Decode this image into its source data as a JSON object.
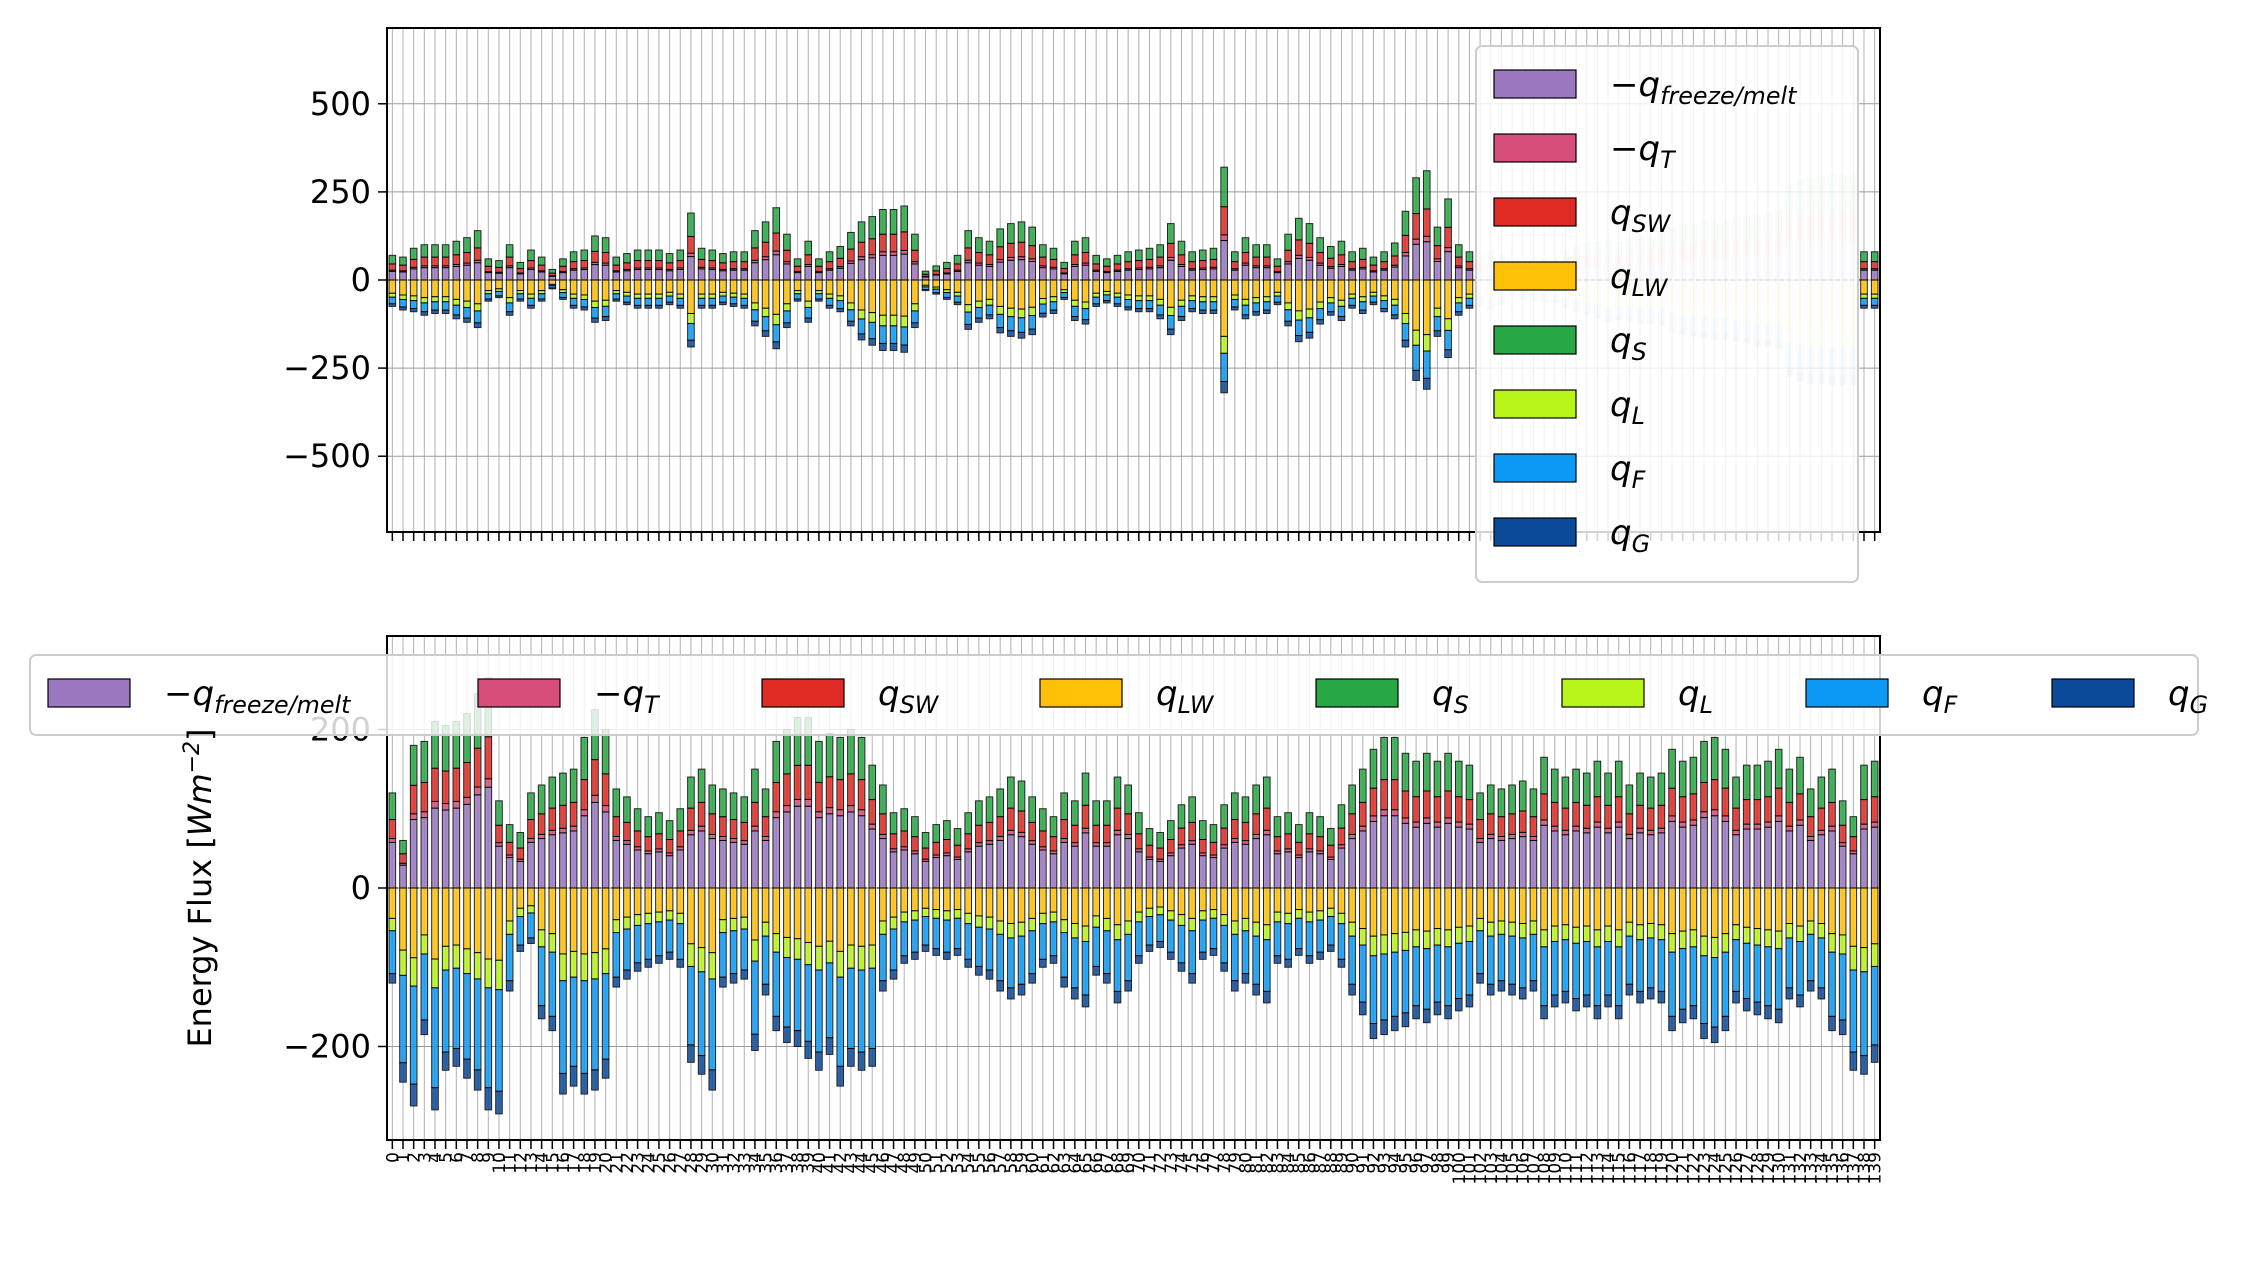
{
  "figure": {
    "ylabel_prefix": "Energy Flux [",
    "ylabel_unit": "Wm",
    "ylabel_sup": "−2",
    "ylabel_suffix": "]"
  },
  "legend_items": [
    {
      "key": "freeze_melt",
      "sign": "−q",
      "sub": "freeze/melt",
      "color": "#9a77bf"
    },
    {
      "key": "qT",
      "sign": "−q",
      "sub": "T",
      "color": "#d64e79"
    },
    {
      "key": "qSW",
      "sign": "q",
      "sub": "SW",
      "color": "#e02a24"
    },
    {
      "key": "qLW",
      "sign": "q",
      "sub": "LW",
      "color": "#ffc107"
    },
    {
      "key": "qS",
      "sign": "q",
      "sub": "S",
      "color": "#28a745"
    },
    {
      "key": "qL",
      "sign": "q",
      "sub": "L",
      "color": "#b8f51a"
    },
    {
      "key": "qF",
      "sign": "q",
      "sub": "F",
      "color": "#0b99f5"
    },
    {
      "key": "qG",
      "sign": "q",
      "sub": "G",
      "color": "#0b4a99"
    }
  ],
  "chart_data": [
    {
      "type": "bar",
      "stacked": true,
      "n_categories": 140,
      "y_ticks": [
        500,
        250,
        0,
        -250,
        -500
      ],
      "y_tick_labels": [
        "500",
        "250",
        "0",
        "−250",
        "−500"
      ],
      "ylim": [
        -715,
        715
      ],
      "grid": true,
      "legend_placement": "upper right, overlapping the bars",
      "positive_totals": [
        70,
        65,
        90,
        100,
        100,
        100,
        110,
        120,
        140,
        60,
        55,
        100,
        50,
        85,
        65,
        30,
        60,
        80,
        85,
        125,
        120,
        65,
        75,
        85,
        85,
        85,
        75,
        85,
        190,
        90,
        85,
        75,
        80,
        80,
        140,
        165,
        205,
        130,
        60,
        110,
        60,
        80,
        95,
        135,
        165,
        180,
        200,
        200,
        210,
        130,
        25,
        40,
        50,
        70,
        140,
        120,
        110,
        145,
        160,
        165,
        150,
        100,
        90,
        50,
        110,
        120,
        70,
        60,
        70,
        80,
        85,
        90,
        100,
        160,
        110,
        80,
        85,
        90,
        320,
        80,
        120,
        100,
        100,
        60,
        130,
        175,
        160,
        120,
        95,
        110,
        80,
        90,
        65,
        80,
        105,
        195,
        290,
        310,
        150,
        230,
        100,
        80,
        70,
        85,
        75,
        35,
        50,
        60,
        60,
        60,
        85,
        95,
        105,
        110,
        115,
        110,
        120,
        125,
        120,
        135,
        150,
        160,
        160,
        170,
        170,
        170,
        180,
        180,
        185,
        190,
        195,
        270,
        290,
        290,
        295,
        300,
        300,
        305,
        80,
        80
      ],
      "negative_totals": [
        -75,
        -85,
        -90,
        -100,
        -95,
        -95,
        -110,
        -120,
        -135,
        -60,
        -50,
        -100,
        -60,
        -80,
        -60,
        -25,
        -55,
        -80,
        -85,
        -120,
        -115,
        -60,
        -70,
        -80,
        -80,
        -80,
        -70,
        -80,
        -190,
        -80,
        -80,
        -70,
        -75,
        -80,
        -130,
        -160,
        -195,
        -135,
        -60,
        -120,
        -60,
        -80,
        -90,
        -130,
        -170,
        -185,
        -200,
        -200,
        -205,
        -135,
        -30,
        -40,
        -55,
        -70,
        -140,
        -120,
        -110,
        -150,
        -160,
        -165,
        -155,
        -105,
        -95,
        -55,
        -115,
        -125,
        -75,
        -65,
        -75,
        -85,
        -90,
        -90,
        -110,
        -155,
        -115,
        -90,
        -95,
        -95,
        -320,
        -85,
        -110,
        -100,
        -95,
        -70,
        -130,
        -175,
        -165,
        -125,
        -100,
        -115,
        -80,
        -95,
        -70,
        -90,
        -110,
        -190,
        -285,
        -310,
        -160,
        -220,
        -100,
        -80,
        -75,
        -85,
        -70,
        -40,
        -55,
        -60,
        -65,
        -65,
        -80,
        -90,
        -100,
        -110,
        -120,
        -115,
        -120,
        -125,
        -125,
        -130,
        -150,
        -155,
        -160,
        -165,
        -170,
        -170,
        -175,
        -180,
        -190,
        -190,
        -195,
        -275,
        -290,
        -295,
        -295,
        -300,
        -300,
        -300,
        -80,
        -80
      ],
      "bars_greyed_from_index": 102
    },
    {
      "type": "bar",
      "stacked": true,
      "n_categories": 140,
      "y_ticks": [
        200,
        0,
        -200
      ],
      "y_tick_labels": [
        "200",
        "0",
        "−200"
      ],
      "ylim": [
        -318,
        318
      ],
      "grid": true,
      "legend_placement": "top, horizontal, overlapping",
      "positive_totals": [
        120,
        60,
        180,
        185,
        210,
        205,
        210,
        220,
        245,
        265,
        110,
        80,
        70,
        120,
        130,
        140,
        145,
        150,
        190,
        225,
        200,
        125,
        115,
        100,
        90,
        95,
        85,
        100,
        140,
        150,
        130,
        125,
        120,
        115,
        150,
        125,
        185,
        200,
        215,
        215,
        185,
        195,
        190,
        200,
        190,
        155,
        130,
        95,
        100,
        90,
        70,
        80,
        85,
        75,
        95,
        110,
        115,
        125,
        140,
        135,
        115,
        100,
        90,
        120,
        110,
        145,
        110,
        110,
        140,
        130,
        95,
        75,
        70,
        85,
        105,
        115,
        85,
        80,
        105,
        120,
        115,
        130,
        140,
        90,
        95,
        80,
        95,
        90,
        75,
        105,
        130,
        150,
        175,
        190,
        190,
        170,
        160,
        170,
        160,
        170,
        160,
        155,
        120,
        130,
        125,
        130,
        135,
        125,
        165,
        150,
        140,
        150,
        145,
        160,
        145,
        160,
        130,
        145,
        140,
        145,
        175,
        160,
        165,
        185,
        190,
        175,
        140,
        155,
        155,
        160,
        175,
        150,
        165,
        125,
        140,
        150,
        110,
        90,
        155,
        160
      ],
      "negative_totals": [
        -120,
        -245,
        -275,
        -185,
        -280,
        -230,
        -225,
        -240,
        -255,
        -280,
        -285,
        -130,
        -80,
        -70,
        -165,
        -180,
        -260,
        -250,
        -260,
        -255,
        -240,
        -125,
        -115,
        -105,
        -100,
        -95,
        -90,
        -100,
        -220,
        -235,
        -255,
        -125,
        -120,
        -115,
        -205,
        -135,
        -180,
        -195,
        -200,
        -215,
        -230,
        -210,
        -250,
        -225,
        -230,
        -225,
        -130,
        -115,
        -95,
        -90,
        -80,
        -85,
        -90,
        -85,
        -100,
        -110,
        -115,
        -130,
        -140,
        -135,
        -120,
        -100,
        -95,
        -125,
        -140,
        -150,
        -110,
        -120,
        -145,
        -130,
        -95,
        -80,
        -75,
        -90,
        -105,
        -120,
        -90,
        -85,
        -105,
        -130,
        -120,
        -135,
        -145,
        -95,
        -100,
        -85,
        -95,
        -90,
        -80,
        -100,
        -135,
        -160,
        -190,
        -185,
        -180,
        -175,
        -165,
        -170,
        -160,
        -165,
        -155,
        -150,
        -120,
        -135,
        -130,
        -135,
        -140,
        -130,
        -165,
        -150,
        -145,
        -155,
        -150,
        -165,
        -150,
        -165,
        -135,
        -145,
        -140,
        -145,
        -180,
        -170,
        -165,
        -190,
        -195,
        -180,
        -145,
        -155,
        -160,
        -165,
        -170,
        -140,
        -150,
        -130,
        -140,
        -180,
        -185,
        -230,
        -235,
        -220
      ]
    }
  ]
}
